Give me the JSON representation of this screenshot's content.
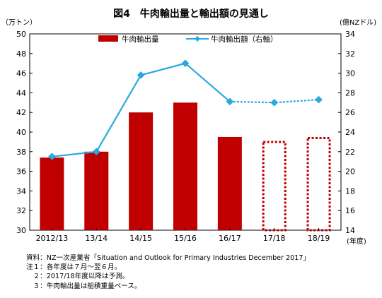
{
  "chart_data": {
    "type": "bar+line",
    "title": "図4　牛肉輸出量と輸出額の見通し",
    "left_unit": "（万トン）",
    "right_unit": "(億NZドル)",
    "x_unit": "(年度)",
    "categories": [
      "2012/13",
      "13/14",
      "14/15",
      "15/16",
      "16/17",
      "17/18",
      "18/19"
    ],
    "y_left": {
      "min": 30,
      "max": 50,
      "step": 2
    },
    "y_right": {
      "min": 14,
      "max": 34,
      "step": 2
    },
    "bars": {
      "name": "牛肉輸出量",
      "color": "#c00000",
      "values": [
        37.4,
        38.0,
        42.0,
        43.0,
        39.5,
        39.1,
        39.5
      ],
      "forecast_from_index": 5
    },
    "line": {
      "name": "牛肉輸出額（右軸）",
      "color": "#29a9e1",
      "values": [
        21.5,
        22.0,
        29.8,
        31.0,
        27.1,
        27.0,
        27.3
      ],
      "forecast_from_index": 4
    },
    "legend_position": "top-center",
    "grid": false
  },
  "notes": [
    "資料：NZ一次産業省「Situation and Outlook for Primary Industries December 2017」",
    "注１：各年度は７月～翌６月。",
    "　２：2017/18年度以降は予測。",
    "　３：牛肉輸出量は船積重量ベース。"
  ]
}
